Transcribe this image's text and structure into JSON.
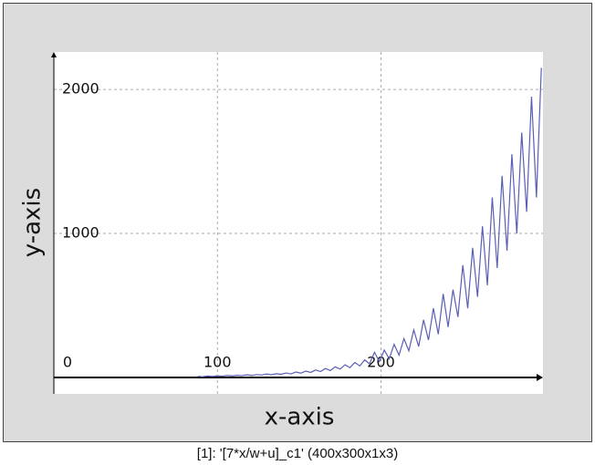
{
  "chart_data": {
    "type": "line",
    "x_label": "x-axis",
    "y_label": "y-axis",
    "caption": "[1]: '[7*x/w+u]_c1' (400x300x1x3)",
    "xlim": [
      0,
      299
    ],
    "ylim": [
      -114,
      2260
    ],
    "xticks": [
      0,
      100,
      200
    ],
    "yticks": [
      1000,
      2000
    ],
    "grid": true,
    "series": [
      {
        "color": "#5a5fb6",
        "x": [
          88,
          91,
          94,
          97,
          100,
          103,
          106,
          109,
          112,
          115,
          118,
          121,
          124,
          127,
          130,
          133,
          136,
          139,
          142,
          145,
          148,
          151,
          154,
          157,
          160,
          163,
          166,
          169,
          172,
          175,
          178,
          181,
          184,
          187,
          190,
          193,
          196,
          199,
          202,
          205,
          208,
          211,
          214,
          217,
          220,
          223,
          226,
          229,
          232,
          235,
          238,
          241,
          244,
          247,
          250,
          253,
          256,
          259,
          262,
          265,
          268,
          271,
          274,
          277,
          280,
          283,
          286,
          289,
          292,
          295,
          298
        ],
        "values": [
          8,
          5,
          10,
          7,
          12,
          9,
          14,
          11,
          15,
          13,
          18,
          14,
          20,
          17,
          24,
          19,
          26,
          22,
          31,
          25,
          38,
          30,
          44,
          35,
          52,
          41,
          62,
          48,
          74,
          58,
          88,
          68,
          104,
          80,
          122,
          95,
          175,
          110,
          190,
          130,
          230,
          155,
          270,
          185,
          330,
          215,
          400,
          260,
          480,
          300,
          580,
          350,
          610,
          420,
          780,
          480,
          900,
          560,
          1050,
          640,
          1250,
          760,
          1400,
          880,
          1550,
          1000,
          1700,
          1150,
          1950,
          1250,
          2150
        ]
      }
    ]
  }
}
